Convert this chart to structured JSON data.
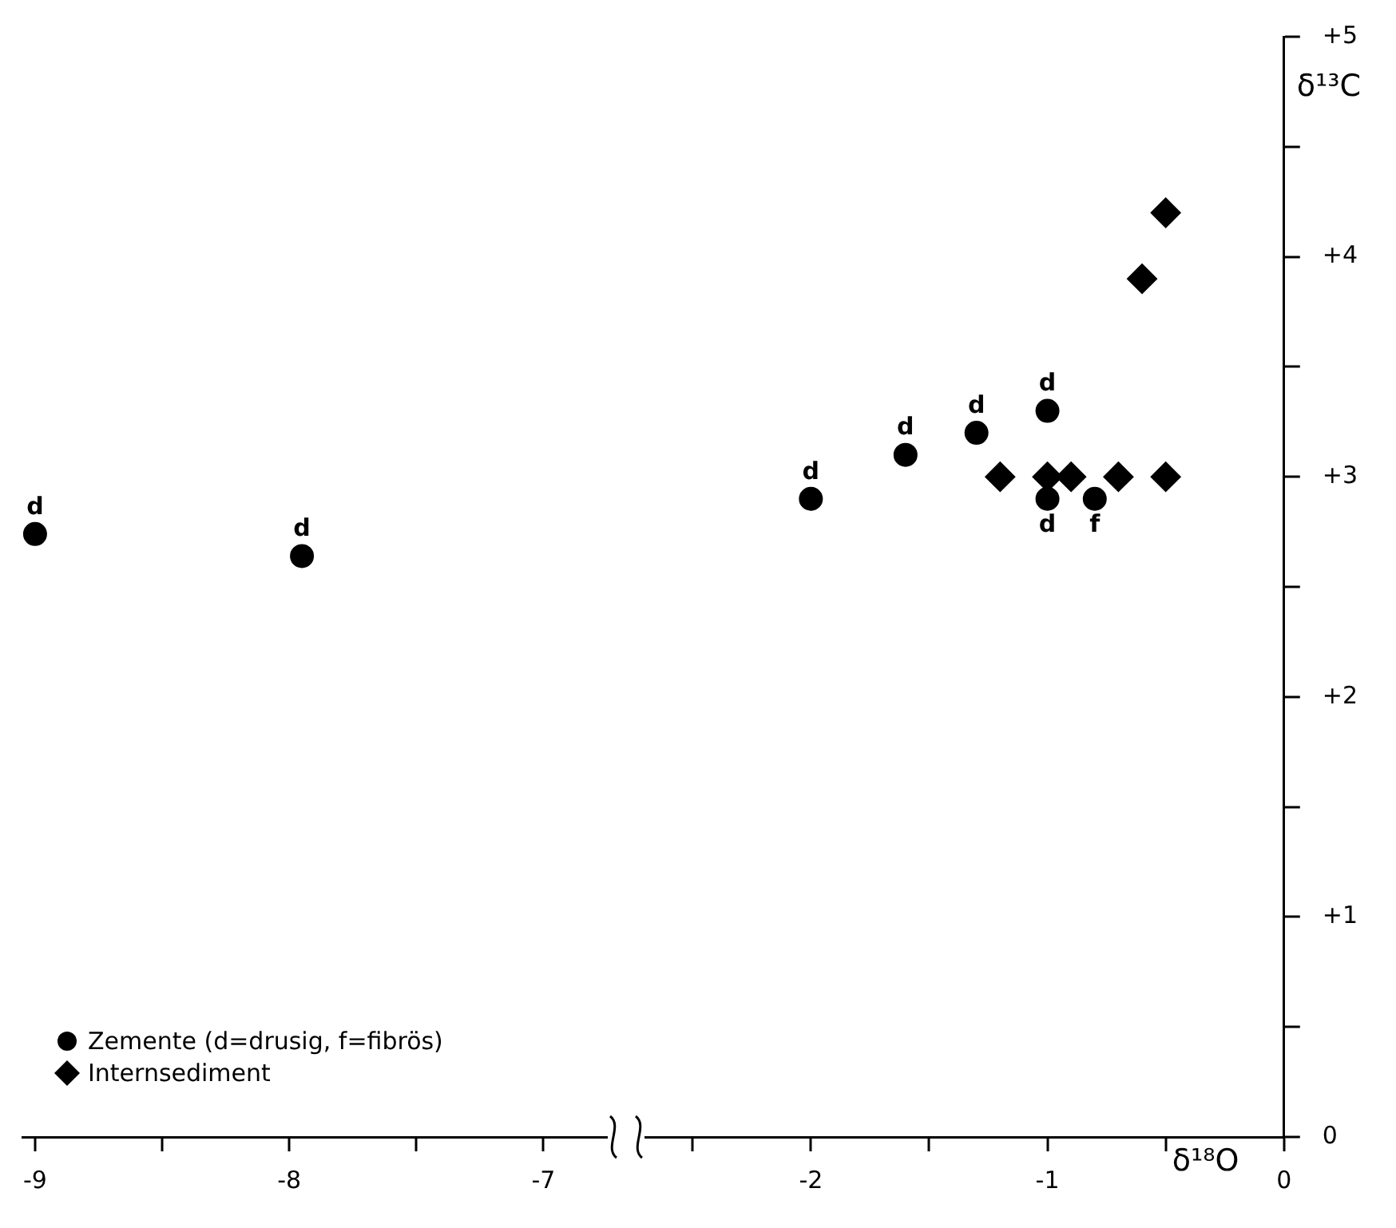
{
  "chart_data": [
    {
      "type": "scatter",
      "xlim": [
        -9.05,
        -6.75
      ],
      "xticks": [
        -9,
        {
          "value": -8.5,
          "label": null
        },
        -8,
        {
          "value": -7.5,
          "label": null
        },
        -7
      ],
      "ylim": [
        0,
        5
      ],
      "tick_labels": "x",
      "grid": false,
      "legend": "bottom left",
      "series": [
        {
          "name": "Zemente (d=drusig, f=fibrös)",
          "color": "#000000",
          "marker": "circle",
          "x": [
            -9.0,
            -7.95
          ],
          "values": [
            2.74,
            2.64
          ],
          "value_labels": [
            "d",
            "d"
          ]
        },
        {
          "name": "Internsediment",
          "color": "#000000",
          "marker": "diamond"
        }
      ]
    },
    {
      "type": "scatter",
      "xlabel": "δ¹⁸O",
      "ylabel": "δ¹³C",
      "xlim": [
        -2.7,
        0
      ],
      "xticks": [
        {
          "value": -2.5,
          "label": null
        },
        -2,
        {
          "value": -1.5,
          "label": null
        },
        -1,
        {
          "value": -0.5,
          "label": null
        },
        0
      ],
      "ylim": [
        0,
        5
      ],
      "yticks": [
        0,
        {
          "value": 0.5,
          "label": null
        },
        {
          "value": 1,
          "label": "+1"
        },
        {
          "value": 1.5,
          "label": null
        },
        {
          "value": 2,
          "label": "+2"
        },
        {
          "value": 2.5,
          "label": null
        },
        {
          "value": 3,
          "label": "+3"
        },
        {
          "value": 3.5,
          "label": null
        },
        {
          "value": 4,
          "label": "+4"
        },
        {
          "value": 4.5,
          "label": null
        },
        {
          "value": 5,
          "label": "+5"
        }
      ],
      "grid": false,
      "series": [
        {
          "color": "#000000",
          "marker": "circle",
          "x": [
            -2.0,
            -1.6,
            -1.3,
            -1.0,
            -1.0,
            -0.8
          ],
          "values": [
            2.9,
            3.1,
            3.2,
            3.3,
            2.9,
            2.9
          ],
          "value_labels": [
            "d",
            "d",
            "d",
            "d",
            "d",
            "f"
          ]
        },
        {
          "color": "#000000",
          "marker": "diamond",
          "x": [
            -1.2,
            -1.0,
            -0.9,
            -0.7,
            -0.5,
            -0.6,
            -0.5
          ],
          "values": [
            3.0,
            3.0,
            3.0,
            3.0,
            3.0,
            3.9,
            4.2
          ]
        }
      ]
    }
  ]
}
